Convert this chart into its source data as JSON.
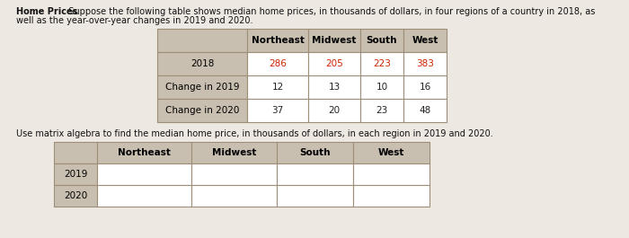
{
  "title_bold": "Home Prices",
  "title_rest": "  Suppose the following table shows median home prices, in thousands of dollars, in four regions of a country in 2018, as",
  "title_line2": "well as the year-over-year changes in 2019 and 2020.",
  "instruction_text": "Use matrix algebra to find the median home price, in thousands of dollars, in each region in 2019 and 2020.",
  "top_table": {
    "col_headers": [
      "Northeast",
      "Midwest",
      "South",
      "West"
    ],
    "row_labels": [
      "2018",
      "Change in 2019",
      "Change in 2020"
    ],
    "row_data": [
      [
        "286",
        "205",
        "223",
        "383"
      ],
      [
        "12",
        "13",
        "10",
        "16"
      ],
      [
        "37",
        "20",
        "23",
        "48"
      ]
    ],
    "row0_data_color": "#cc2200",
    "other_data_color": "#222222"
  },
  "bottom_table": {
    "col_headers": [
      "Northeast",
      "Midwest",
      "South",
      "West"
    ],
    "row_labels": [
      "2019",
      "2020"
    ]
  },
  "bg_color": "#ede8e2",
  "table_bg_white": "#ffffff",
  "table_border_color": "#9e8e78",
  "header_bg": "#c8bfb0",
  "label_bg": "#c8bfb0",
  "font_size_text": 7.0,
  "font_size_table": 7.5
}
